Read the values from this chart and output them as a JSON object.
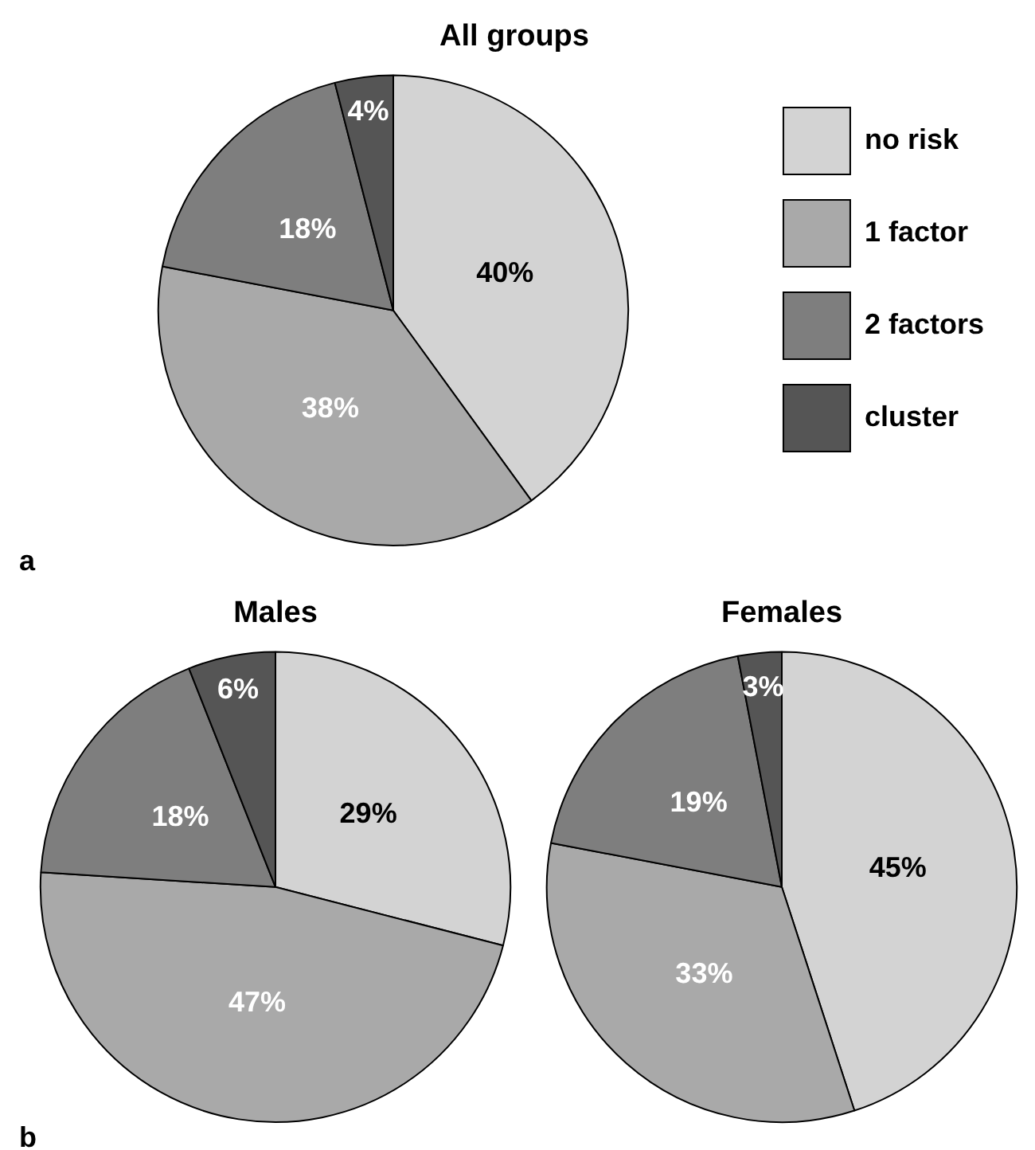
{
  "chart_data": [
    {
      "type": "pie",
      "title": "All groups",
      "categories": [
        "no risk",
        "1 factor",
        "2 factors",
        "cluster"
      ],
      "values": [
        40,
        38,
        18,
        4
      ],
      "value_labels": [
        "40%",
        "38%",
        "18%",
        "4%"
      ],
      "colors": [
        "#d3d3d3",
        "#a9a9a9",
        "#7e7e7e",
        "#555555"
      ],
      "legend": "right",
      "annotations": [
        "a"
      ]
    },
    {
      "type": "pie",
      "title": "Males",
      "categories": [
        null,
        null,
        null,
        null
      ],
      "values": [
        29,
        47,
        18,
        6
      ],
      "value_labels": [
        "29%",
        "47%",
        "18%",
        "6%"
      ],
      "colors": [
        "#d3d3d3",
        "#a9a9a9",
        "#7e7e7e",
        "#555555"
      ],
      "annotations": [
        "b"
      ]
    },
    {
      "type": "pie",
      "title": "Females",
      "categories": [
        null,
        null,
        null,
        null
      ],
      "values": [
        45,
        33,
        19,
        3
      ],
      "value_labels": [
        "45%",
        "33%",
        "19%",
        "3%"
      ],
      "colors": [
        "#d3d3d3",
        "#a9a9a9",
        "#7e7e7e",
        "#555555"
      ]
    }
  ]
}
